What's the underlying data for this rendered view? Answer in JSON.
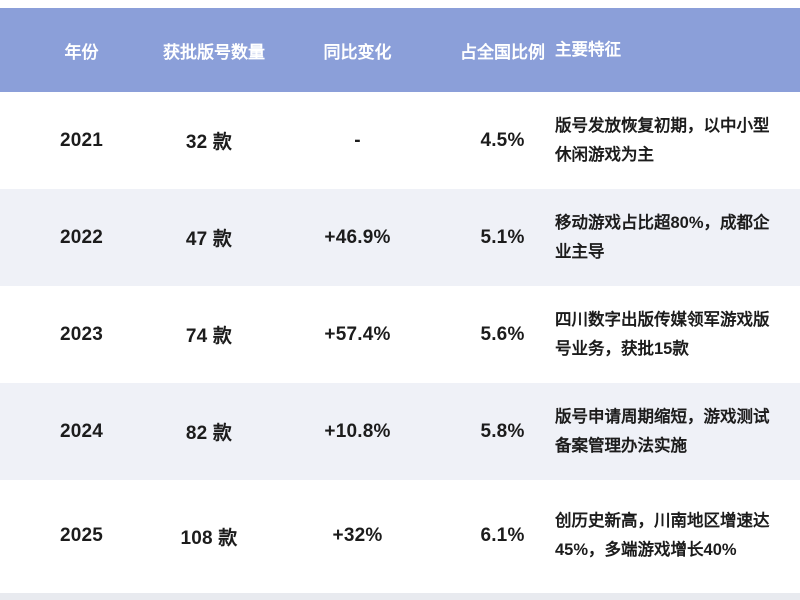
{
  "colors": {
    "header_bg": "#8b9fd9",
    "header_text": "#ffffff",
    "row_bg": "#ffffff",
    "row_alt_bg": "#eff1f7",
    "body_text": "#1c1c1c",
    "footer_strip": "#e8eaef"
  },
  "chart_data": {
    "type": "table",
    "columns": [
      "年份",
      "获批版号数量",
      "同比变化",
      "占全国比例",
      "主要特征"
    ],
    "rows": [
      {
        "year": "2021",
        "count": "32 款",
        "change": "-",
        "ratio": "4.5%",
        "features": "版号发放恢复初期，以中小型休闲游戏为主"
      },
      {
        "year": "2022",
        "count": "47 款",
        "change": "+46.9%",
        "ratio": "5.1%",
        "features": "移动游戏占比超80%，成都企业主导"
      },
      {
        "year": "2023",
        "count": "74 款",
        "change": "+57.4%",
        "ratio": "5.6%",
        "features": "四川数字出版传媒领军游戏版号业务，获批15款"
      },
      {
        "year": "2024",
        "count": "82 款",
        "change": "+10.8%",
        "ratio": "5.8%",
        "features": "版号申请周期缩短，游戏测试备案管理办法实施"
      },
      {
        "year": "2025",
        "count": "108 款",
        "change": "+32%",
        "ratio": "6.1%",
        "features": "创历史新高，川南地区增速达45%，多端游戏增长40%"
      }
    ]
  }
}
